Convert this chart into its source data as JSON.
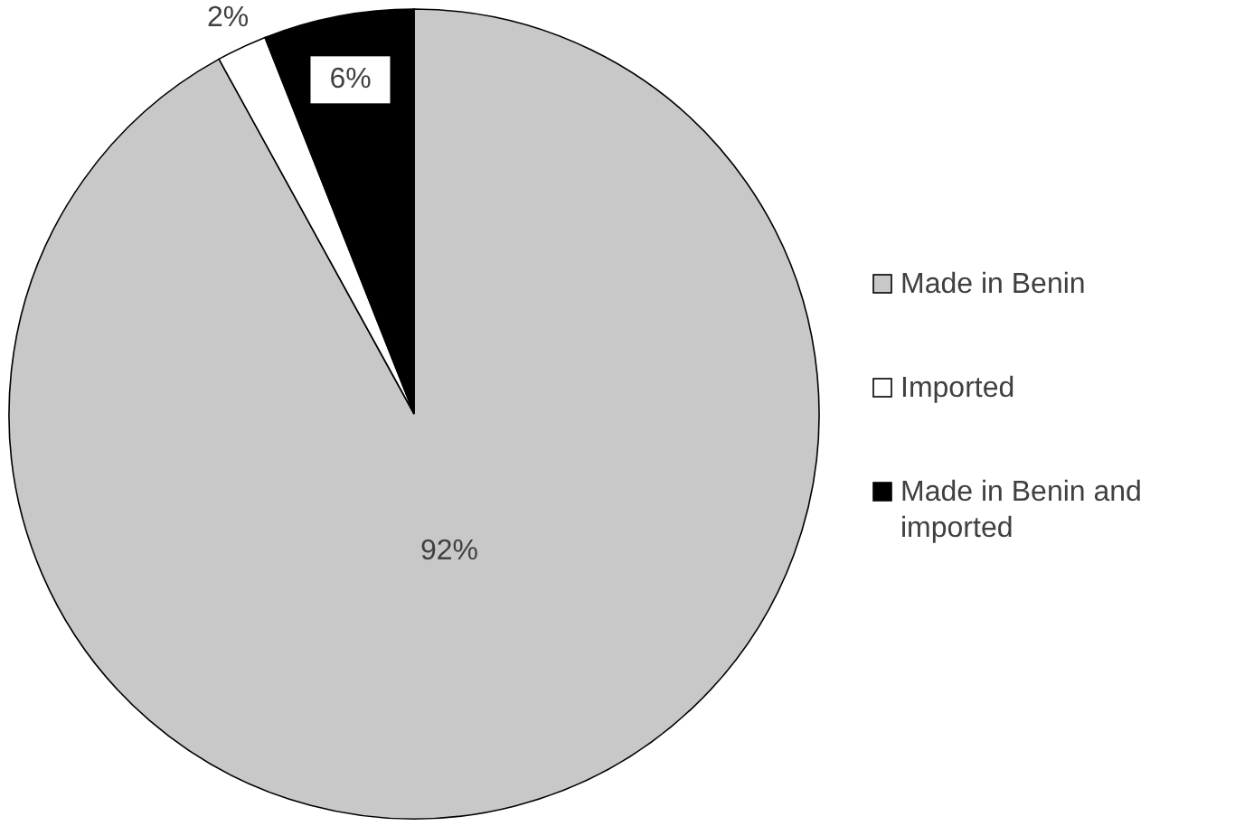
{
  "chart_data": {
    "type": "pie",
    "categories": [
      "Made in Benin",
      "Imported",
      "Made in Benin and imported"
    ],
    "values": [
      92,
      2,
      6
    ],
    "colors": [
      "#c8c8c8",
      "#ffffff",
      "#000000"
    ],
    "value_labels": [
      "92%",
      "2%",
      "6%"
    ],
    "legend": "right"
  }
}
